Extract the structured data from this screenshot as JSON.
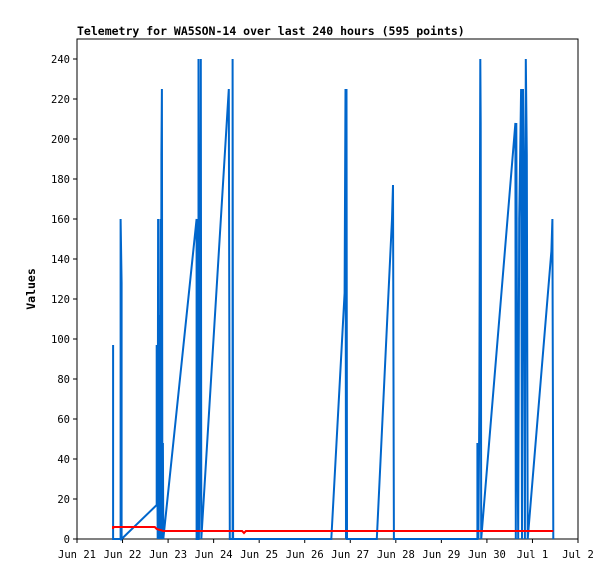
{
  "chart_data": {
    "type": "line",
    "title": "Telemetry for WA5SON-14 over last 240 hours (595 points)",
    "ylabel": "Values",
    "xlabel": "",
    "ylim": [
      0,
      250
    ],
    "yticks": [
      0,
      20,
      40,
      60,
      80,
      100,
      120,
      140,
      160,
      180,
      200,
      220,
      240
    ],
    "xlim": [
      "2024-06-21",
      "2024-07-02"
    ],
    "xticks": [
      {
        "x": "2024-06-21",
        "label": "Jun 21"
      },
      {
        "x": "2024-06-22",
        "label": "Jun 22"
      },
      {
        "x": "2024-06-23",
        "label": "Jun 23"
      },
      {
        "x": "2024-06-24",
        "label": "Jun 24"
      },
      {
        "x": "2024-06-25",
        "label": "Jun 25"
      },
      {
        "x": "2024-06-26",
        "label": "Jun 26"
      },
      {
        "x": "2024-06-27",
        "label": "Jun 27"
      },
      {
        "x": "2024-06-28",
        "label": "Jun 28"
      },
      {
        "x": "2024-06-29",
        "label": "Jun 29"
      },
      {
        "x": "2024-06-30",
        "label": "Jun 30"
      },
      {
        "x": "2024-07-01",
        "label": "Jul 1"
      },
      {
        "x": "2024-07-02",
        "label": "Jul 2"
      }
    ],
    "grid": false,
    "legend": "none",
    "series": [
      {
        "color": "#0066cc",
        "points": [
          [
            "2024-06-21T19:00",
            0
          ],
          [
            "2024-06-21T19:00",
            97
          ],
          [
            "2024-06-21T19:00",
            0
          ],
          [
            "2024-06-21T23:00",
            0
          ],
          [
            "2024-06-21T23:00",
            160
          ],
          [
            "2024-06-21T23:30",
            128
          ],
          [
            "2024-06-21T23:30",
            0
          ],
          [
            "2024-06-22T18:00",
            17
          ],
          [
            "2024-06-22T18:00",
            97
          ],
          [
            "2024-06-22T18:30",
            0
          ],
          [
            "2024-06-22T18:45",
            160
          ],
          [
            "2024-06-22T19:00",
            0
          ],
          [
            "2024-06-22T19:30",
            112
          ],
          [
            "2024-06-22T19:45",
            0
          ],
          [
            "2024-06-22T20:00",
            160
          ],
          [
            "2024-06-22T20:15",
            0
          ],
          [
            "2024-06-22T20:30",
            192
          ],
          [
            "2024-06-22T20:45",
            225
          ],
          [
            "2024-06-22T21:00",
            0
          ],
          [
            "2024-06-22T21:15",
            48
          ],
          [
            "2024-06-22T21:30",
            0
          ],
          [
            "2024-06-23T15:00",
            160
          ],
          [
            "2024-06-23T15:00",
            0
          ],
          [
            "2024-06-23T16:00",
            0
          ],
          [
            "2024-06-23T16:00",
            240
          ],
          [
            "2024-06-23T16:15",
            0
          ],
          [
            "2024-06-23T16:45",
            64
          ],
          [
            "2024-06-23T17:15",
            240
          ],
          [
            "2024-06-23T17:30",
            0
          ],
          [
            "2024-06-24T08:00",
            225
          ],
          [
            "2024-06-24T08:30",
            0
          ],
          [
            "2024-06-24T10:00",
            0
          ],
          [
            "2024-06-24T10:00",
            240
          ],
          [
            "2024-06-24T10:15",
            0
          ],
          [
            "2024-06-26T14:00",
            0
          ],
          [
            "2024-06-26T21:00",
            123
          ],
          [
            "2024-06-26T21:30",
            225
          ],
          [
            "2024-06-26T21:45",
            0
          ],
          [
            "2024-06-26T22:00",
            225
          ],
          [
            "2024-06-26T22:15",
            0
          ],
          [
            "2024-06-27T14:00",
            0
          ],
          [
            "2024-06-27T22:00",
            160
          ],
          [
            "2024-06-27T22:30",
            177
          ],
          [
            "2024-06-27T23:00",
            0
          ],
          [
            "2024-06-29T19:00",
            0
          ],
          [
            "2024-06-29T19:00",
            48
          ],
          [
            "2024-06-29T19:30",
            0
          ],
          [
            "2024-06-29T20:00",
            64
          ],
          [
            "2024-06-29T20:30",
            240
          ],
          [
            "2024-06-29T20:45",
            208
          ],
          [
            "2024-06-29T21:00",
            0
          ],
          [
            "2024-06-30T15:00",
            208
          ],
          [
            "2024-06-30T15:15",
            0
          ],
          [
            "2024-06-30T15:30",
            208
          ],
          [
            "2024-06-30T16:00",
            64
          ],
          [
            "2024-06-30T16:30",
            0
          ],
          [
            "2024-06-30T17:00",
            160
          ],
          [
            "2024-06-30T17:30",
            190
          ],
          [
            "2024-06-30T18:00",
            225
          ],
          [
            "2024-06-30T18:30",
            0
          ],
          [
            "2024-06-30T19:00",
            225
          ],
          [
            "2024-06-30T19:30",
            180
          ],
          [
            "2024-06-30T20:00",
            0
          ],
          [
            "2024-06-30T20:30",
            240
          ],
          [
            "2024-06-30T21:00",
            192
          ],
          [
            "2024-06-30T21:30",
            0
          ],
          [
            "2024-07-01T10:00",
            144
          ],
          [
            "2024-07-01T10:30",
            160
          ],
          [
            "2024-07-01T11:00",
            0
          ]
        ]
      },
      {
        "color": "#ff0000",
        "points": [
          [
            "2024-06-21T19:00",
            5
          ],
          [
            "2024-06-21T19:00",
            6
          ],
          [
            "2024-06-22T17:00",
            6
          ],
          [
            "2024-06-22T18:00",
            5
          ],
          [
            "2024-06-22T21:30",
            4
          ],
          [
            "2024-06-24T15:00",
            4
          ],
          [
            "2024-06-24T16:00",
            3
          ],
          [
            "2024-06-24T17:00",
            4
          ],
          [
            "2024-07-01T11:00",
            4
          ]
        ]
      }
    ]
  }
}
